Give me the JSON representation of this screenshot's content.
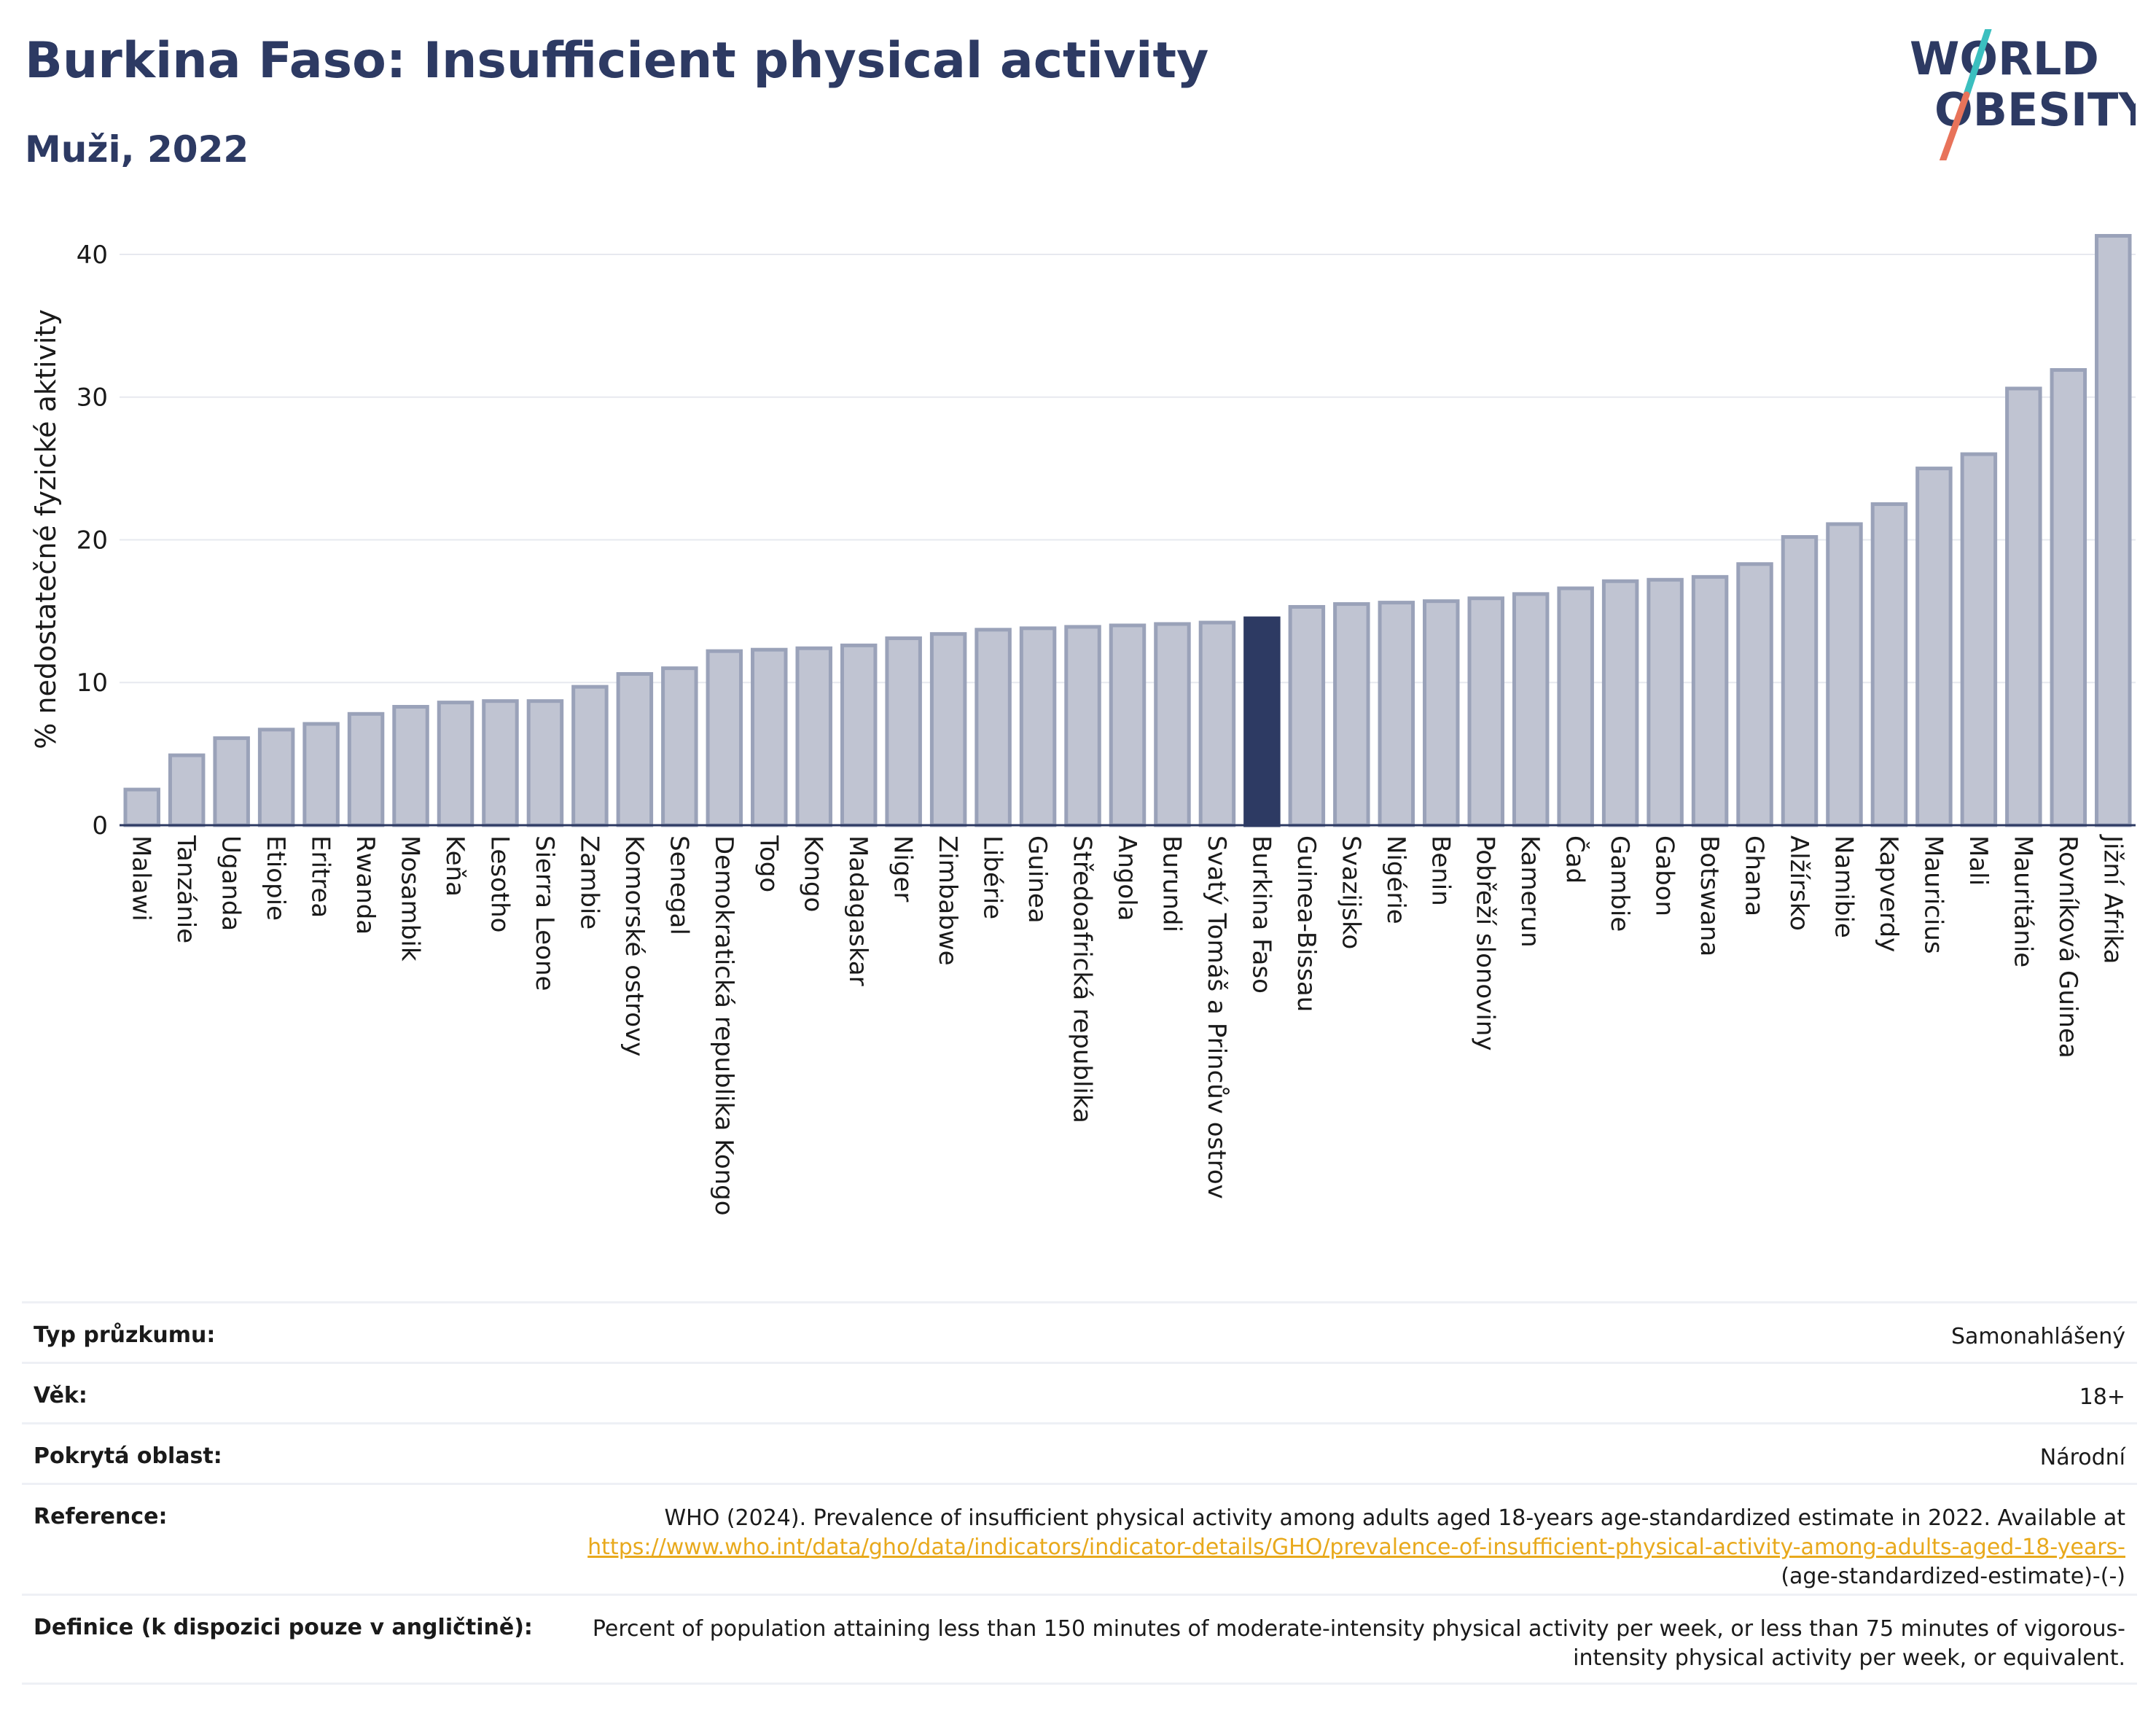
{
  "header": {
    "title": "Burkina Faso: Insufficient physical activity",
    "subtitle": "Muži, 2022"
  },
  "logo": {
    "line1": "WORLD",
    "line2": "OBESITY",
    "colors": {
      "text": "#2d3a63",
      "slash_top": "#3bbfbf",
      "slash_bottom": "#e8735a"
    }
  },
  "chart_data": {
    "type": "bar",
    "ylabel": "% nedostatečné fyzické aktivity",
    "ylim": [
      0,
      42.5
    ],
    "yticks": [
      0,
      10,
      20,
      30,
      40
    ],
    "grid": true,
    "highlight": "Burkina Faso",
    "colors": {
      "bar": "#c0c4d2",
      "bar_border": "#9aa2b9",
      "highlight": "#2d3a63"
    },
    "categories": [
      "Malawi",
      "Tanzánie",
      "Uganda",
      "Etiopie",
      "Eritrea",
      "Rwanda",
      "Mosambik",
      "Keňa",
      "Lesotho",
      "Sierra Leone",
      "Zambie",
      "Komorské ostrovy",
      "Senegal",
      "Demokratická republika Kongo",
      "Togo",
      "Kongo",
      "Madagaskar",
      "Niger",
      "Zimbabwe",
      "Libérie",
      "Guinea",
      "Středoafrická republika",
      "Angola",
      "Burundi",
      "Svatý Tomáš a Princův ostrov",
      "Burkina Faso",
      "Guinea-Bissau",
      "Svazijsko",
      "Nigérie",
      "Benin",
      "Pobřeží slonoviny",
      "Kamerun",
      "Čad",
      "Gambie",
      "Gabon",
      "Botswana",
      "Ghana",
      "Alžírsko",
      "Namibie",
      "Kapverdy",
      "Mauricius",
      "Mali",
      "Mauritánie",
      "Rovníková Guinea",
      "Jižní Afrika"
    ],
    "values": [
      2.5,
      4.9,
      6.1,
      6.7,
      7.1,
      7.8,
      8.3,
      8.6,
      8.7,
      8.7,
      9.7,
      10.6,
      11.0,
      12.2,
      12.3,
      12.4,
      12.6,
      13.1,
      13.4,
      13.7,
      13.8,
      13.9,
      14.0,
      14.1,
      14.2,
      14.5,
      15.3,
      15.5,
      15.6,
      15.7,
      15.9,
      16.2,
      16.6,
      17.1,
      17.2,
      17.4,
      18.3,
      20.2,
      21.1,
      22.5,
      25.0,
      26.0,
      30.6,
      31.9,
      41.3
    ]
  },
  "info_table": {
    "survey_type": {
      "label": "Typ průzkumu:",
      "value": "Samonahlášený"
    },
    "age": {
      "label": "Věk:",
      "value": "18+"
    },
    "coverage": {
      "label": "Pokrytá oblast:",
      "value": "Národní"
    },
    "reference": {
      "label": "Reference:",
      "text": "WHO (2024). Prevalence of insufficient physical activity among adults aged 18-years age-standardized estimate in 2022. Available at",
      "link": "https://www.who.int/data/gho/data/indicators/indicator-details/GHO/prevalence-of-insufficient-physical-activity-among-adults-aged-18-years-",
      "suffix": "(age-standardized-estimate)-(-)"
    },
    "definition": {
      "label": "Definice (k dispozici pouze v angličtině):",
      "value": "Percent of population attaining less than 150 minutes of moderate-intensity physical activity per week, or less than 75 minutes of vigorous-intensity physical activity per week, or equivalent."
    }
  }
}
